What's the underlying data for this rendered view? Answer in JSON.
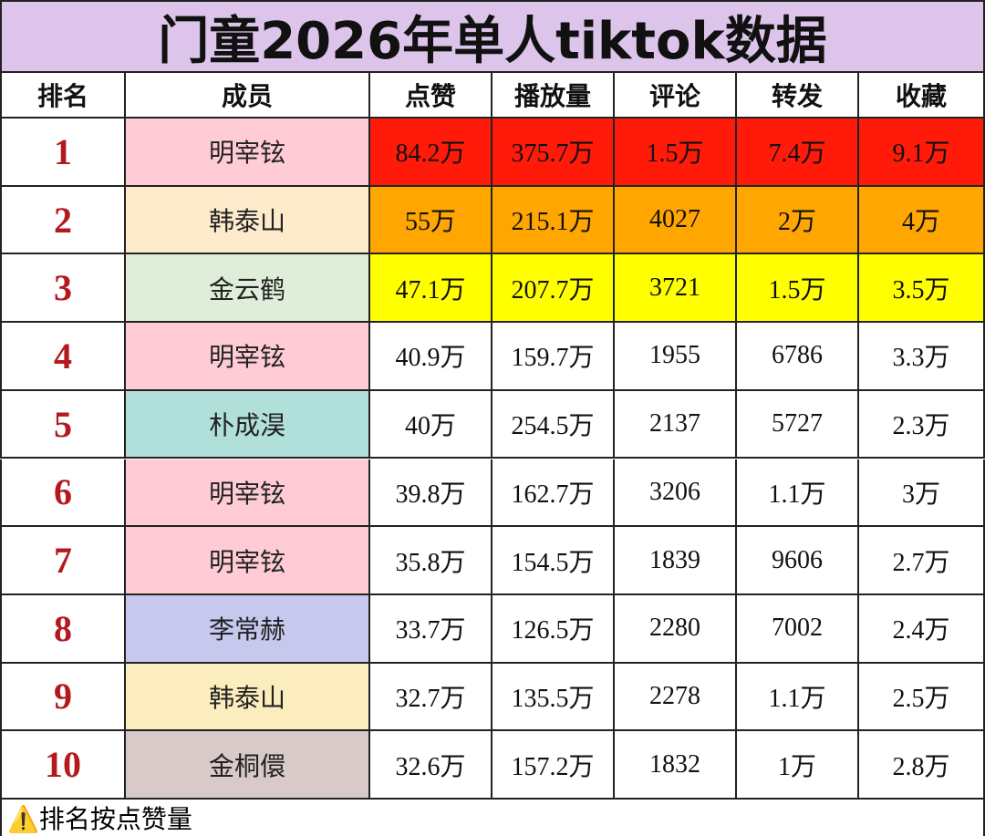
{
  "header": {
    "title": "门童2026年单人tiktok数据"
  },
  "table": {
    "columns": [
      "排名",
      "成员",
      "点赞",
      "播放量",
      "评论",
      "转发",
      "收藏"
    ],
    "rows": [
      [
        "1",
        "明宰铉",
        "84.2万",
        "375.7万",
        "1.5万",
        "7.4万",
        "9.1万"
      ],
      [
        "2",
        "韩泰山",
        "55万",
        "215.1万",
        "4027",
        "2万",
        "4万"
      ],
      [
        "3",
        "金云鹤",
        "47.1万",
        "207.7万",
        "3721",
        "1.5万",
        "3.5万"
      ],
      [
        "4",
        "明宰铉",
        "40.9万",
        "159.7万",
        "1955",
        "6786",
        "3.3万"
      ],
      [
        "5",
        "朴成淏",
        "40万",
        "254.5万",
        "2137",
        "5727",
        "2.3万"
      ],
      [
        "6",
        "明宰铉",
        "39.8万",
        "162.7万",
        "3206",
        "1.1万",
        "3万"
      ],
      [
        "7",
        "明宰铉",
        "35.8万",
        "154.5万",
        "1839",
        "9606",
        "2.7万"
      ],
      [
        "8",
        "李常赫",
        "33.7万",
        "126.5万",
        "2280",
        "7002",
        "2.4万"
      ],
      [
        "9",
        "韩泰山",
        "32.7万",
        "135.5万",
        "2278",
        "1.1万",
        "2.5万"
      ],
      [
        "10",
        "金桐儇",
        "32.6万",
        "157.2万",
        "1832",
        "1万",
        "2.8万"
      ]
    ]
  },
  "footer": {
    "note": "⚠️排名按点赞量"
  }
}
